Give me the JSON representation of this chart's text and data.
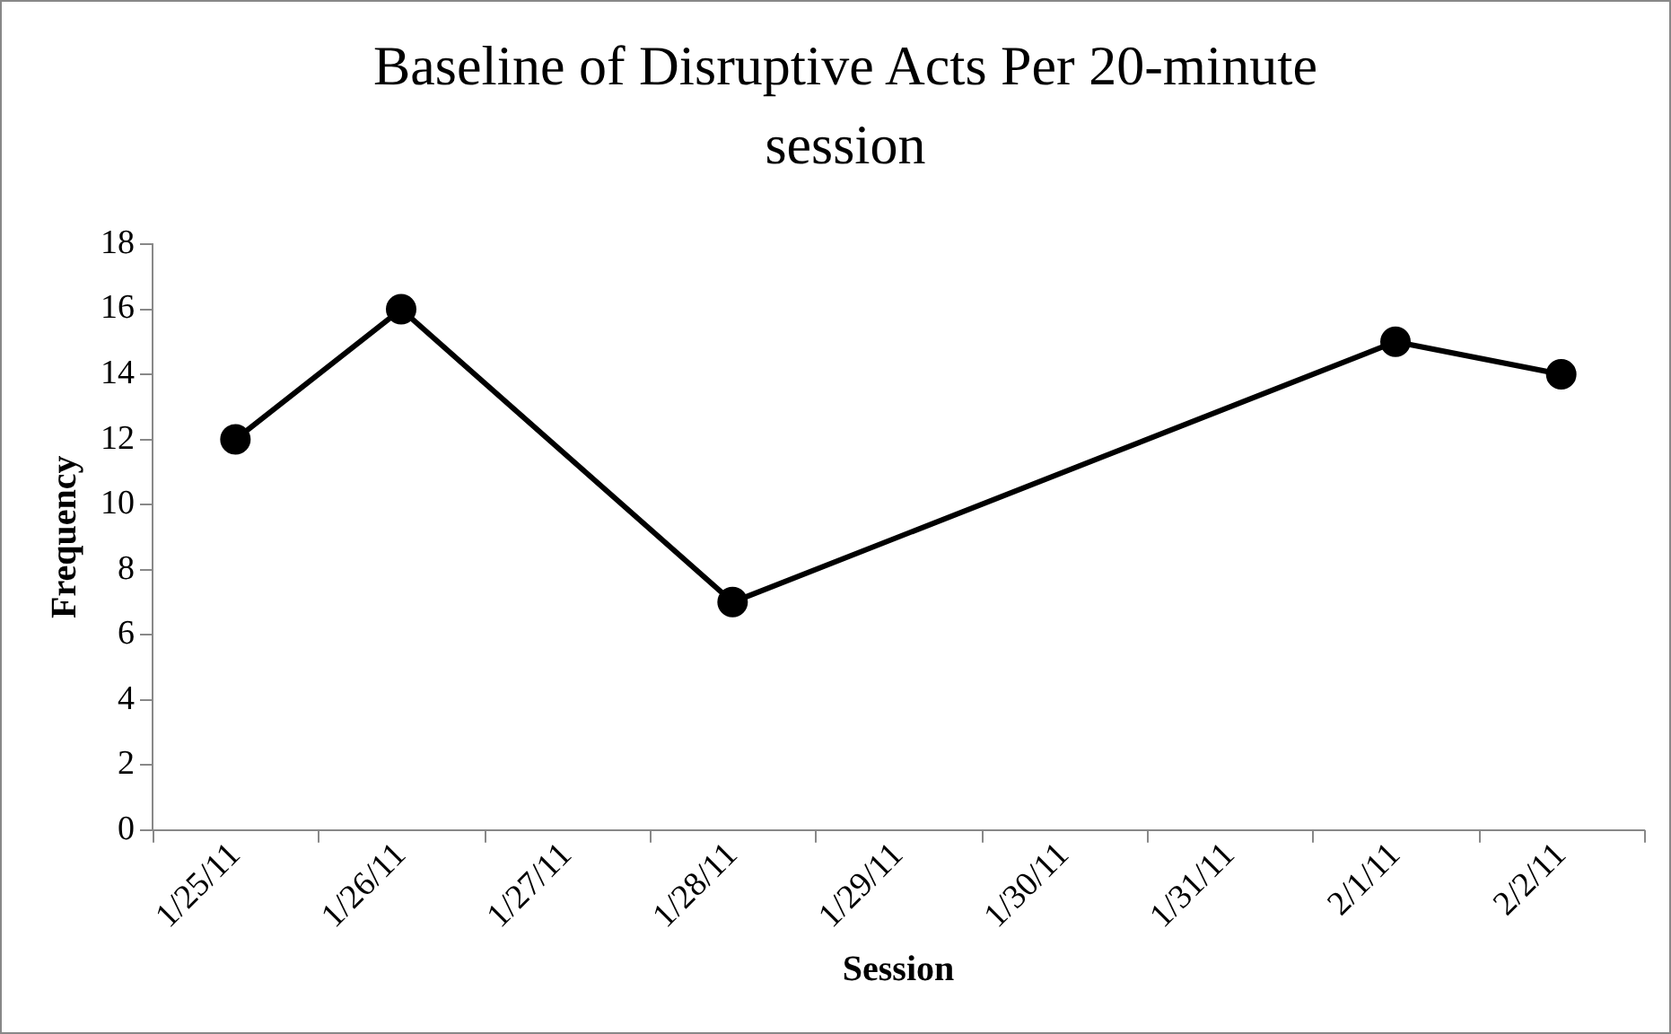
{
  "chart_data": {
    "type": "line",
    "title": "Baseline of Disruptive Acts Per 20-minute session",
    "xlabel": "Session",
    "ylabel": "Frequency",
    "categories": [
      "1/25/11",
      "1/26/11",
      "1/27/11",
      "1/28/11",
      "1/29/11",
      "1/30/11",
      "1/31/11",
      "2/1/11",
      "2/2/11"
    ],
    "series": [
      {
        "color": "#000000",
        "x": [
          "1/25/11",
          "1/26/11",
          "1/28/11",
          "2/1/11",
          "2/2/11"
        ],
        "values": [
          12,
          16,
          7,
          15,
          14
        ]
      }
    ],
    "ylim": [
      0,
      18
    ],
    "yticks": [
      0,
      2,
      4,
      6,
      8,
      10,
      12,
      14,
      16,
      18
    ],
    "marker": "circle",
    "line_style": "solid"
  }
}
